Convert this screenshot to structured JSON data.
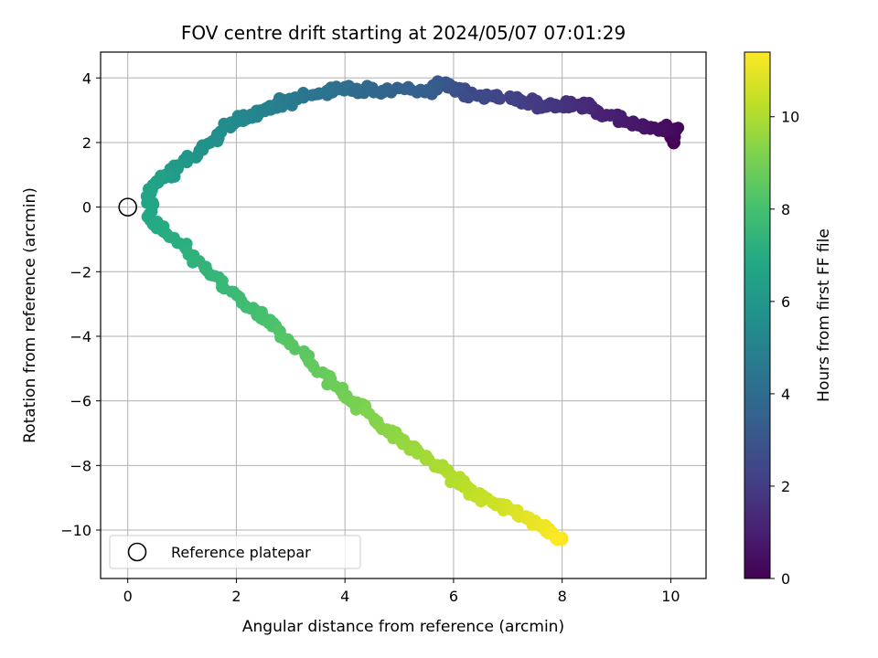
{
  "chart_data": {
    "type": "scatter",
    "title": "FOV centre drift starting at 2024/05/07 07:01:29",
    "xlabel": "Angular distance from reference (arcmin)",
    "ylabel": "Rotation from reference (arcmin)",
    "xlim": [
      -0.5,
      10.65
    ],
    "ylim": [
      -11.5,
      4.8
    ],
    "xticks": [
      0,
      2,
      4,
      6,
      8,
      10
    ],
    "yticks": [
      -10,
      -8,
      -6,
      -4,
      -2,
      0,
      2,
      4
    ],
    "grid": true,
    "colormap": "viridis",
    "colorbar": {
      "label": "Hours from first FF file",
      "min": 0,
      "max": 11.4,
      "ticks": [
        0,
        2,
        4,
        6,
        8,
        10
      ]
    },
    "reference_point": {
      "label": "Reference platepar",
      "x": 0,
      "y": 0
    },
    "legend": {
      "location": "lower-left",
      "entries": [
        "Reference platepar"
      ]
    },
    "path_keypoints": [
      {
        "t": 0.0,
        "x": 10.0,
        "y": 1.95
      },
      {
        "t": 0.25,
        "x": 10.1,
        "y": 2.4
      },
      {
        "t": 0.6,
        "x": 9.5,
        "y": 2.45
      },
      {
        "t": 1.0,
        "x": 8.8,
        "y": 2.9
      },
      {
        "t": 1.4,
        "x": 8.3,
        "y": 3.2
      },
      {
        "t": 1.8,
        "x": 7.7,
        "y": 3.1
      },
      {
        "t": 2.2,
        "x": 7.1,
        "y": 3.4
      },
      {
        "t": 2.6,
        "x": 6.2,
        "y": 3.5
      },
      {
        "t": 3.0,
        "x": 5.8,
        "y": 3.85
      },
      {
        "t": 3.4,
        "x": 5.5,
        "y": 3.6
      },
      {
        "t": 3.8,
        "x": 4.4,
        "y": 3.6
      },
      {
        "t": 4.2,
        "x": 3.8,
        "y": 3.65
      },
      {
        "t": 4.6,
        "x": 3.0,
        "y": 3.3
      },
      {
        "t": 5.0,
        "x": 2.5,
        "y": 3.0
      },
      {
        "t": 5.4,
        "x": 1.9,
        "y": 2.6
      },
      {
        "t": 5.8,
        "x": 1.3,
        "y": 1.7
      },
      {
        "t": 6.2,
        "x": 0.8,
        "y": 1.1
      },
      {
        "t": 6.6,
        "x": 0.4,
        "y": 0.55
      },
      {
        "t": 6.85,
        "x": 0.4,
        "y": -0.4
      },
      {
        "t": 7.1,
        "x": 0.9,
        "y": -1.1
      },
      {
        "t": 7.5,
        "x": 1.6,
        "y": -2.2
      },
      {
        "t": 7.9,
        "x": 2.3,
        "y": -3.2
      },
      {
        "t": 8.3,
        "x": 2.9,
        "y": -4.0
      },
      {
        "t": 8.7,
        "x": 3.6,
        "y": -5.2
      },
      {
        "t": 9.1,
        "x": 4.3,
        "y": -6.2
      },
      {
        "t": 9.5,
        "x": 5.0,
        "y": -7.2
      },
      {
        "t": 9.9,
        "x": 5.7,
        "y": -8.0
      },
      {
        "t": 10.3,
        "x": 6.4,
        "y": -8.9
      },
      {
        "t": 10.8,
        "x": 7.2,
        "y": -9.5
      },
      {
        "t": 11.2,
        "x": 7.8,
        "y": -10.0
      },
      {
        "t": 11.4,
        "x": 8.0,
        "y": -10.3
      }
    ]
  }
}
